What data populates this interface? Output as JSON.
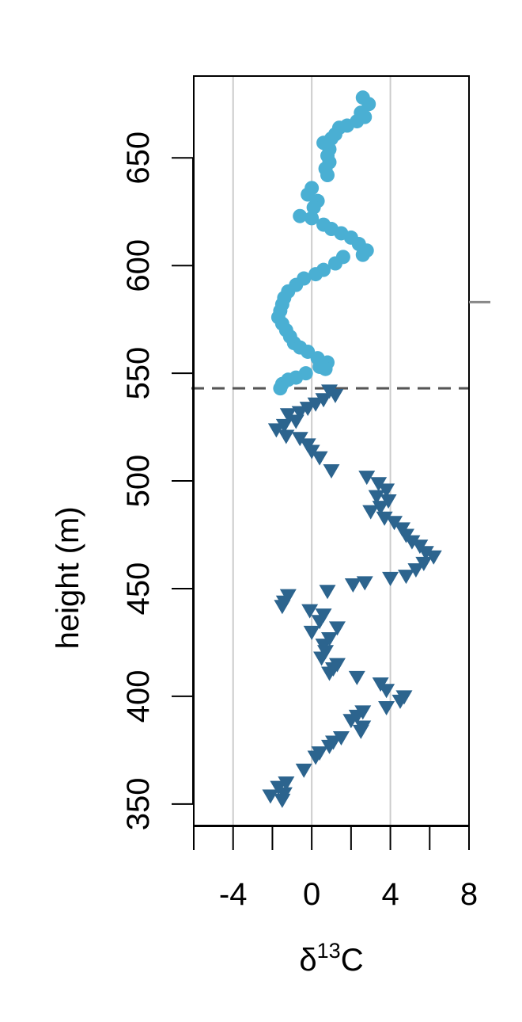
{
  "chart_data": {
    "type": "scatter",
    "xlabel": "δ13C",
    "ylabel": "height (m)",
    "xlim": [
      -6,
      8
    ],
    "ylim": [
      340,
      688
    ],
    "x_ticks": [
      -4,
      0,
      4,
      8
    ],
    "x_minor_ticks": [
      -6,
      -4,
      -2,
      0,
      2,
      4,
      6,
      8
    ],
    "y_ticks": [
      350,
      400,
      450,
      500,
      550,
      600,
      650
    ],
    "gridlines_x": [
      -4,
      0,
      4
    ],
    "grid": "vertical-only",
    "reference_line": {
      "y": 543,
      "style": "dashed"
    },
    "colors": {
      "upper": "#4AAFD3",
      "lower": "#2C648E",
      "grid": "#CCCCCC",
      "reference_line": "#555555",
      "edge_mark": "#888888"
    },
    "series": [
      {
        "marker": "circle",
        "color": "#4AAFD3",
        "points": [
          [
            2.6,
            678
          ],
          [
            2.9,
            675
          ],
          [
            2.5,
            671
          ],
          [
            2.7,
            669
          ],
          [
            2.3,
            667
          ],
          [
            1.8,
            665
          ],
          [
            1.4,
            664
          ],
          [
            1.2,
            661
          ],
          [
            1.0,
            659
          ],
          [
            0.6,
            657
          ],
          [
            0.9,
            654
          ],
          [
            0.8,
            651
          ],
          [
            0.9,
            648
          ],
          [
            0.7,
            645
          ],
          [
            0.8,
            642
          ],
          [
            0.0,
            636
          ],
          [
            -0.2,
            633
          ],
          [
            0.3,
            630
          ],
          [
            0.1,
            627
          ],
          [
            -0.6,
            623
          ],
          [
            0.0,
            622
          ],
          [
            0.6,
            619
          ],
          [
            1.0,
            617
          ],
          [
            1.5,
            615
          ],
          [
            2.0,
            613
          ],
          [
            2.4,
            610
          ],
          [
            2.8,
            607
          ],
          [
            2.6,
            605
          ],
          [
            1.6,
            604
          ],
          [
            1.2,
            601
          ],
          [
            0.6,
            598
          ],
          [
            0.2,
            596
          ],
          [
            -0.4,
            594
          ],
          [
            -0.8,
            591
          ],
          [
            -1.2,
            588
          ],
          [
            -1.4,
            585
          ],
          [
            -1.5,
            582
          ],
          [
            -1.6,
            579
          ],
          [
            -1.7,
            576
          ],
          [
            -1.5,
            573
          ],
          [
            -1.3,
            570
          ],
          [
            -1.1,
            567
          ],
          [
            -0.9,
            564
          ],
          [
            -0.6,
            562
          ],
          [
            -0.2,
            560
          ],
          [
            0.3,
            557
          ],
          [
            0.8,
            555
          ],
          [
            0.4,
            553
          ],
          [
            0.7,
            552
          ],
          [
            -0.3,
            550
          ],
          [
            -0.8,
            548
          ],
          [
            -1.2,
            547
          ],
          [
            -1.5,
            545
          ],
          [
            -1.6,
            543
          ]
        ]
      },
      {
        "marker": "triangle-down",
        "color": "#2C648E",
        "points": [
          [
            0.9,
            542
          ],
          [
            1.2,
            540
          ],
          [
            0.6,
            538
          ],
          [
            0.2,
            536
          ],
          [
            -0.2,
            534
          ],
          [
            -0.6,
            532
          ],
          [
            -1.2,
            531
          ],
          [
            -0.8,
            528
          ],
          [
            -1.4,
            526
          ],
          [
            -1.8,
            524
          ],
          [
            -1.3,
            521
          ],
          [
            -0.6,
            520
          ],
          [
            -0.2,
            517
          ],
          [
            0.0,
            514
          ],
          [
            0.4,
            511
          ],
          [
            1.0,
            505
          ],
          [
            2.8,
            502
          ],
          [
            3.4,
            499
          ],
          [
            3.8,
            496
          ],
          [
            3.3,
            493
          ],
          [
            3.9,
            491
          ],
          [
            3.5,
            488
          ],
          [
            3.0,
            486
          ],
          [
            3.7,
            483
          ],
          [
            4.2,
            481
          ],
          [
            4.6,
            478
          ],
          [
            4.8,
            475
          ],
          [
            5.1,
            472
          ],
          [
            5.5,
            470
          ],
          [
            5.8,
            467
          ],
          [
            6.2,
            465
          ],
          [
            5.7,
            462
          ],
          [
            5.3,
            459
          ],
          [
            4.8,
            456
          ],
          [
            4.0,
            455
          ],
          [
            2.7,
            453
          ],
          [
            2.1,
            452
          ],
          [
            0.8,
            449
          ],
          [
            -1.2,
            447
          ],
          [
            -1.4,
            444
          ],
          [
            -1.5,
            442
          ],
          [
            -0.1,
            440
          ],
          [
            0.6,
            438
          ],
          [
            0.4,
            435
          ],
          [
            1.3,
            432
          ],
          [
            0.0,
            430
          ],
          [
            0.9,
            427
          ],
          [
            0.6,
            424
          ],
          [
            0.7,
            421
          ],
          [
            0.5,
            418
          ],
          [
            1.3,
            415
          ],
          [
            1.1,
            413
          ],
          [
            0.9,
            411
          ],
          [
            2.3,
            409
          ],
          [
            3.5,
            406
          ],
          [
            3.8,
            403
          ],
          [
            4.7,
            400
          ],
          [
            4.5,
            398
          ],
          [
            3.8,
            395
          ],
          [
            2.6,
            393
          ],
          [
            2.3,
            391
          ],
          [
            2.0,
            389
          ],
          [
            2.6,
            386
          ],
          [
            2.5,
            384
          ],
          [
            1.5,
            381
          ],
          [
            1.1,
            379
          ],
          [
            0.9,
            377
          ],
          [
            0.4,
            374
          ],
          [
            0.2,
            372
          ],
          [
            -0.4,
            366
          ],
          [
            -1.3,
            360
          ],
          [
            -1.7,
            358
          ],
          [
            -1.4,
            355
          ],
          [
            -2.1,
            354
          ],
          [
            -1.5,
            352
          ]
        ]
      }
    ]
  }
}
